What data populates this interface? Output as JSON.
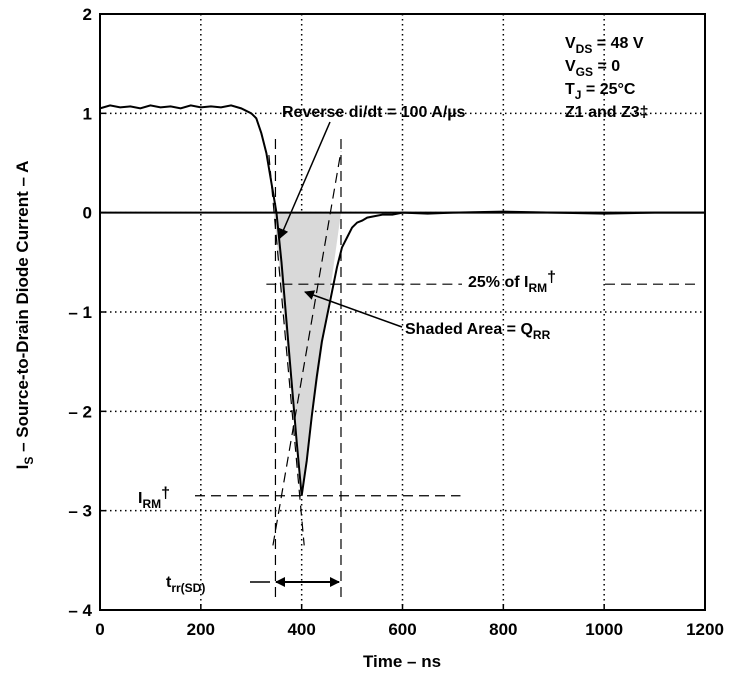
{
  "chart_data": {
    "type": "line",
    "xlabel": "Time – ns",
    "ylabel_main": "I",
    "ylabel_sub": "S",
    "ylabel_rest": " – Source-to-Drain Diode Current – A",
    "xlim": [
      0,
      1200
    ],
    "ylim": [
      -4,
      2
    ],
    "x_ticks": [
      0,
      200,
      400,
      600,
      800,
      1000,
      1200
    ],
    "y_ticks": [
      2,
      1,
      0,
      -1,
      -2,
      -3,
      -4
    ],
    "x_tick_labels": [
      "0",
      "200",
      "400",
      "600",
      "800",
      "1000",
      "1200"
    ],
    "y_tick_labels": [
      "2",
      "1",
      "0",
      "– 1",
      "– 2",
      "– 3",
      "– 4"
    ],
    "grid": "dotted",
    "series": [
      {
        "x": [
          0,
          20,
          40,
          60,
          80,
          100,
          120,
          140,
          160,
          180,
          200,
          220,
          240,
          260,
          280,
          300,
          310,
          320,
          330,
          340,
          350,
          360,
          370,
          380,
          390,
          400,
          410,
          420,
          430,
          440,
          450,
          460,
          470,
          480,
          490,
          500,
          510,
          520,
          530,
          540,
          560,
          580,
          600,
          650,
          700,
          800,
          900,
          1000,
          1100,
          1200
        ],
        "y": [
          1.05,
          1.08,
          1.06,
          1.07,
          1.05,
          1.08,
          1.06,
          1.07,
          1.05,
          1.08,
          1.06,
          1.07,
          1.06,
          1.08,
          1.05,
          1.0,
          0.95,
          0.8,
          0.6,
          0.3,
          0.0,
          -0.5,
          -1.1,
          -1.7,
          -2.3,
          -2.85,
          -2.5,
          -2.05,
          -1.65,
          -1.3,
          -1.05,
          -0.8,
          -0.55,
          -0.35,
          -0.25,
          -0.15,
          -0.1,
          -0.08,
          -0.05,
          -0.04,
          -0.02,
          -0.02,
          0.0,
          -0.01,
          0.0,
          0.01,
          0.0,
          -0.01,
          0.0,
          0.0
        ]
      }
    ],
    "annotations": {
      "vds": {
        "main": "V",
        "sub": "DS",
        "rest": " = 48 V"
      },
      "vgs": {
        "main": "V",
        "sub": "GS",
        "rest": " = 0"
      },
      "tj": {
        "main": "T",
        "sub": "J",
        "rest": " = 25°C"
      },
      "z": {
        "text": "Z1 and Z3‡"
      },
      "didt": {
        "text": "Reverse di/dt = 100 A/µs"
      },
      "pct": {
        "pre": "25% of I",
        "sub": "RM",
        "post": "†"
      },
      "qrr": {
        "pre": "Shaded Area = Q",
        "sub": "RR"
      },
      "irm": {
        "main": "I",
        "sub": "RM",
        "post": "†"
      },
      "trr": {
        "main": "t",
        "sub": "rr(SD)"
      }
    },
    "shaded_area_x": [
      345,
      400,
      478
    ],
    "shaded_area_y": [
      0,
      -2.85,
      0
    ],
    "reference": {
      "irm_value": -2.85,
      "irm_line_end": 715,
      "pct_value": -0.72,
      "pct_line_start": 330,
      "trr_start": 348,
      "trr_end": 478,
      "didt_line_x": [
        335,
        405
      ],
      "didt_line_y": [
        0.58,
        -3.35
      ],
      "rec_line_x": [
        343,
        478
      ],
      "rec_line_y": [
        -3.35,
        0.62
      ]
    }
  }
}
